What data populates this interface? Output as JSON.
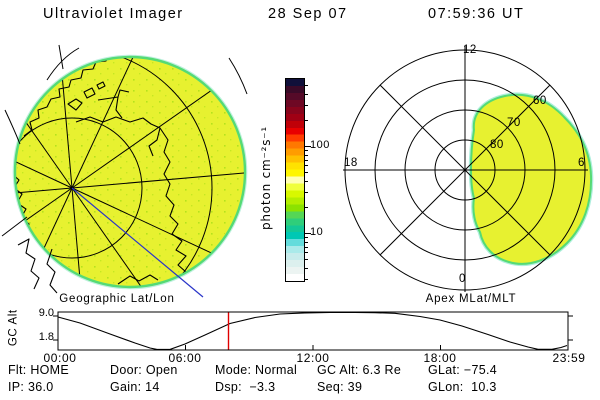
{
  "title": {
    "app": "Ultraviolet Imager",
    "date": "28 Sep 07",
    "time": "07:59:36 UT"
  },
  "captions": {
    "left": "Geographic Lat/Lon",
    "right": "Apex MLat/MLT"
  },
  "colorbar": {
    "label": "photon cm⁻²s⁻¹",
    "scale": "log",
    "tick_labels": [
      "100",
      "10"
    ],
    "colors": [
      "#10103a",
      "#3a0a28",
      "#550a28",
      "#6e0824",
      "#88041c",
      "#a00014",
      "#c00008",
      "#e80000",
      "#ff3c00",
      "#ff7800",
      "#ff9c00",
      "#ffc000",
      "#ffe200",
      "#fff600",
      "#ffffb4",
      "#f0ff3c",
      "#d8f800",
      "#b4ee00",
      "#8ce200",
      "#55d655",
      "#2fce7a",
      "#14c896",
      "#00c8b4",
      "#64dcdc",
      "#aaeaea",
      "#c8ecec",
      "#dcf0ee",
      "#ecf4f2",
      "#ffffff"
    ]
  },
  "right_plot": {
    "mlt_top": "12",
    "mlt_left": "18",
    "mlt_right": "6",
    "mlt_bottom": "0",
    "mlat_labels": [
      "80",
      "70",
      "60"
    ]
  },
  "strip_chart": {
    "ylabel": "GC Alt",
    "ytick_top": "9.0",
    "ytick_bottom": "1.8",
    "xticks": [
      "00:00",
      "06:00",
      "12:00",
      "18:00",
      "23:59"
    ]
  },
  "status": {
    "row1": [
      "Flt: HOME",
      "Door: Open",
      "Mode: Normal",
      "GC Alt: 6.3 Re",
      "GLat: −75.4"
    ],
    "row2": [
      "IP: 36.0",
      "Gain: 14",
      "Dsp:  −3.3",
      "Seq: 39",
      "GLon:  10.3"
    ]
  },
  "chart_data": [
    {
      "type": "heatmap",
      "title": "Geographic Lat/Lon",
      "description": "UVI auroral image, orthographic projection over southern polar region with lat/lon graticule and coastlines; disk uniformly ~30-60 photon cm-2 s-1 (yellow-green), blue orbit-track meridian from pole toward lower right",
      "colorbar": {
        "label": "photon cm⁻²s⁻¹",
        "scale": "log",
        "ticks": [
          10,
          100
        ],
        "range_approx": [
          1,
          600
        ]
      }
    },
    {
      "type": "heatmap",
      "title": "Apex MLat/MLT",
      "description": "Same image mapped to magnetic apex coordinates; polar dial with MLT spokes every 3 h and MLat rings",
      "mlt_spoke_labels": [
        12,
        18,
        6,
        0
      ],
      "mlat_rings": [
        80,
        70,
        60,
        50
      ],
      "blob_extent": "yellow image region covers roughly 01-11 MLT sector from ~85 MLat out past 50 MLat on dawnside"
    },
    {
      "type": "line",
      "title": "GC Alt vs UT",
      "xlabel": "UT",
      "ylabel": "GC Alt (Re)",
      "yticks": [
        1.8,
        9.0
      ],
      "x": [
        "00:00",
        "02:00",
        "04:40",
        "06:00",
        "08:00",
        "10:00",
        "13:00",
        "16:00",
        "18:00",
        "20:00",
        "22:40",
        "23:59"
      ],
      "values": [
        8.5,
        6.0,
        1.8,
        4.0,
        6.3,
        8.0,
        9.2,
        9.0,
        8.2,
        6.5,
        1.8,
        2.3
      ],
      "cursor": {
        "time": "07:59:36",
        "value": 6.3,
        "color": "#e00000"
      }
    }
  ],
  "colors": {
    "image_fill": "#e7f130",
    "image_rim_green": "#55da75",
    "image_rim_cyan": "#bff0df",
    "grid": "#000000",
    "track_line": "#2a35c8",
    "cursor_line": "#e00000",
    "background": "#ffffff"
  }
}
